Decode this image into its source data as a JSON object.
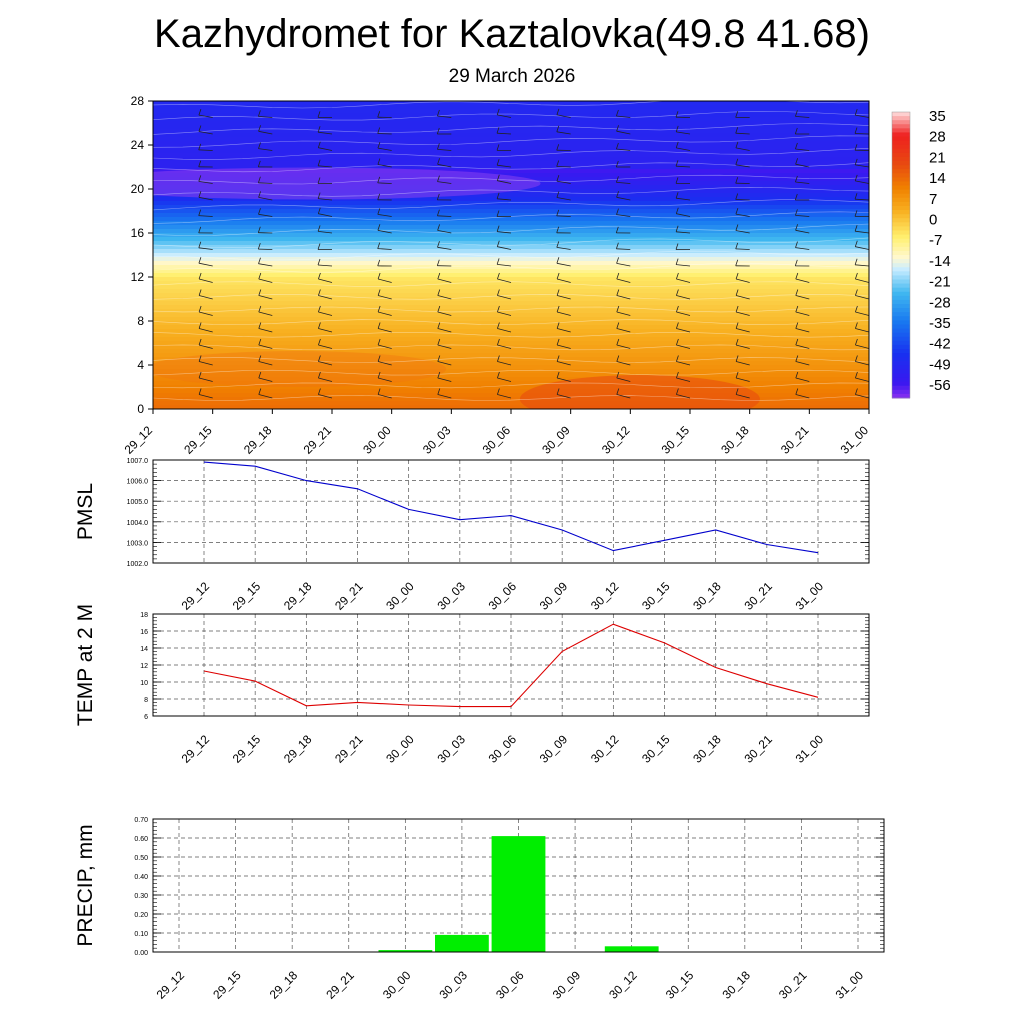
{
  "title": "Kazhydromet for Kaztalovka(49.8 41.68)",
  "subtitle": "29 March 2026",
  "time_labels": [
    "29_12",
    "29_15",
    "29_18",
    "29_21",
    "30_00",
    "30_03",
    "30_06",
    "30_09",
    "30_12",
    "30_15",
    "30_18",
    "30_21",
    "31_00"
  ],
  "chart_data": [
    {
      "type": "heatmap",
      "name": "temperature-cross-section",
      "x": [
        "29_12",
        "29_15",
        "29_18",
        "29_21",
        "30_00",
        "30_03",
        "30_06",
        "30_09",
        "30_12",
        "30_15",
        "30_18",
        "30_21",
        "31_00"
      ],
      "y_ticks": [
        0,
        4,
        8,
        12,
        16,
        20,
        24,
        28
      ],
      "ylim": [
        0,
        28
      ],
      "colorbar": {
        "labels": [
          "35",
          "28",
          "21",
          "14",
          "7",
          "0",
          "-7",
          "-14",
          "-21",
          "-28",
          "-35",
          "-42",
          "-49",
          "-56"
        ],
        "range": [
          -60,
          38
        ],
        "stops": [
          {
            "v": 38,
            "color": "#ffe0e0"
          },
          {
            "v": 30,
            "color": "#ee2020"
          },
          {
            "v": 20,
            "color": "#e84a10"
          },
          {
            "v": 12,
            "color": "#f08000"
          },
          {
            "v": 4,
            "color": "#f8b020"
          },
          {
            "v": -5,
            "color": "#fff070"
          },
          {
            "v": -12,
            "color": "#fff8d0"
          },
          {
            "v": -16,
            "color": "#c8ecff"
          },
          {
            "v": -24,
            "color": "#40b8f0"
          },
          {
            "v": -34,
            "color": "#1878f0"
          },
          {
            "v": -45,
            "color": "#1830f0"
          },
          {
            "v": -55,
            "color": "#3a18f0"
          },
          {
            "v": -60,
            "color": "#8a30f0"
          }
        ]
      }
    },
    {
      "type": "line",
      "name": "PMSL",
      "ylabel": "PMSL",
      "x": [
        "29_12",
        "29_15",
        "29_18",
        "29_21",
        "30_00",
        "30_03",
        "30_06",
        "30_09",
        "30_12",
        "30_15",
        "30_18",
        "30_21",
        "31_00"
      ],
      "values": [
        1006.9,
        1006.7,
        1006.0,
        1005.6,
        1004.6,
        1004.1,
        1004.3,
        1003.6,
        1002.6,
        1003.1,
        1003.6,
        1002.9,
        1002.5
      ],
      "ylim": [
        1002.0,
        1007.0
      ],
      "y_ticks": [
        "1002.0",
        "1003.0",
        "1004.0",
        "1005.0",
        "1006.0",
        "1007.0"
      ],
      "color": "#0000cc"
    },
    {
      "type": "line",
      "name": "TEMP at 2 M",
      "ylabel": "TEMP at 2 M",
      "x": [
        "29_12",
        "29_15",
        "29_18",
        "29_21",
        "30_00",
        "30_03",
        "30_06",
        "30_09",
        "30_12",
        "30_15",
        "30_18",
        "30_21",
        "31_00"
      ],
      "values": [
        11.3,
        10.1,
        7.2,
        7.6,
        7.3,
        7.1,
        7.1,
        13.6,
        16.8,
        14.6,
        11.7,
        9.8,
        8.2
      ],
      "ylim": [
        6,
        18
      ],
      "y_ticks": [
        "6",
        "8",
        "10",
        "12",
        "14",
        "16",
        "18"
      ],
      "color": "#dd0000"
    },
    {
      "type": "bar",
      "name": "PRECIP, mm",
      "ylabel": "PRECIP, mm",
      "categories": [
        "29_12",
        "29_15",
        "29_18",
        "29_21",
        "30_00",
        "30_03",
        "30_06",
        "30_09",
        "30_12",
        "30_15",
        "30_18",
        "30_21",
        "31_00"
      ],
      "values": [
        0,
        0,
        0,
        0,
        0.01,
        0.09,
        0.61,
        0,
        0.03,
        0,
        0,
        0,
        0
      ],
      "ylim": [
        0,
        0.7
      ],
      "y_ticks": [
        "0.00",
        "0.10",
        "0.20",
        "0.30",
        "0.40",
        "0.50",
        "0.60",
        "0.70"
      ],
      "color": "#00ee00"
    }
  ]
}
